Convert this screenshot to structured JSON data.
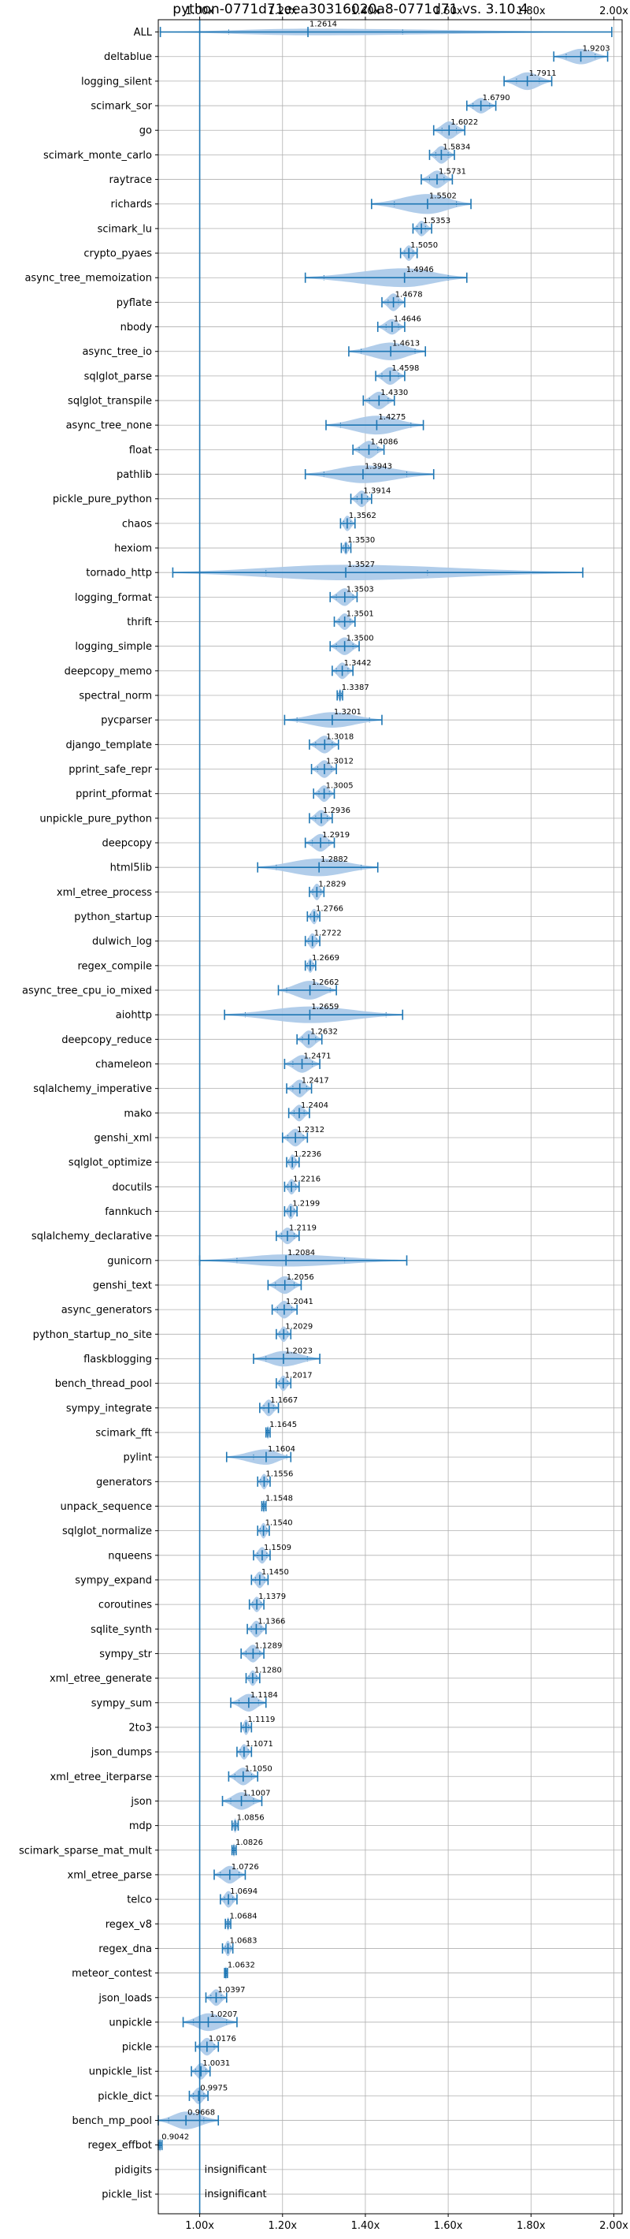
{
  "chart_data": {
    "type": "violin",
    "title": "python-0771d71eea30316020a8-0771d71 vs. 3.10.4",
    "x_ticks": [
      "1.00x",
      "1.20x",
      "1.40x",
      "1.60x",
      "1.80x",
      "2.00x"
    ],
    "x_tick_values": [
      1.0,
      1.2,
      1.4,
      1.6,
      1.8,
      2.0
    ],
    "xlim": [
      0.9,
      2.02
    ],
    "reference_line": 1.0,
    "grid": true,
    "colors": {
      "violin": "#a9c8e8",
      "line": "#1f77b4",
      "grid": "#b0b0b0",
      "axis": "#000000"
    },
    "rows": [
      {
        "name": "ALL",
        "label": "1.2614",
        "center": 1.2614,
        "min": 0.905,
        "max": 1.995,
        "qlo": 1.07,
        "qhi": 1.49,
        "width": 0.3
      },
      {
        "name": "deltablue",
        "label": "1.9203",
        "center": 1.9203,
        "min": 1.855,
        "max": 1.985,
        "qlo": 1.885,
        "qhi": 1.955,
        "width": 0.7
      },
      {
        "name": "logging_silent",
        "label": "1.7911",
        "center": 1.7911,
        "min": 1.735,
        "max": 1.85,
        "qlo": 1.765,
        "qhi": 1.82,
        "width": 0.8
      },
      {
        "name": "scimark_sor",
        "label": "1.6790",
        "center": 1.679,
        "min": 1.645,
        "max": 1.715,
        "qlo": 1.66,
        "qhi": 1.7,
        "width": 0.7
      },
      {
        "name": "go",
        "label": "1.6022",
        "center": 1.6022,
        "min": 1.565,
        "max": 1.64,
        "qlo": 1.585,
        "qhi": 1.62,
        "width": 0.8
      },
      {
        "name": "scimark_monte_carlo",
        "label": "1.5834",
        "center": 1.5834,
        "min": 1.555,
        "max": 1.615,
        "qlo": 1.57,
        "qhi": 1.6,
        "width": 0.8
      },
      {
        "name": "raytrace",
        "label": "1.5731",
        "center": 1.5731,
        "min": 1.535,
        "max": 1.61,
        "qlo": 1.555,
        "qhi": 1.59,
        "width": 0.8
      },
      {
        "name": "richards",
        "label": "1.5502",
        "center": 1.5502,
        "min": 1.415,
        "max": 1.655,
        "qlo": 1.47,
        "qhi": 1.62,
        "width": 0.9
      },
      {
        "name": "scimark_lu",
        "label": "1.5353",
        "center": 1.5353,
        "min": 1.515,
        "max": 1.56,
        "qlo": 1.525,
        "qhi": 1.545,
        "width": 0.7
      },
      {
        "name": "crypto_pyaes",
        "label": "1.5050",
        "center": 1.505,
        "min": 1.485,
        "max": 1.525,
        "qlo": 1.495,
        "qhi": 1.515,
        "width": 0.7
      },
      {
        "name": "async_tree_memoization",
        "label": "1.4946",
        "center": 1.4946,
        "min": 1.255,
        "max": 1.645,
        "qlo": 1.3,
        "qhi": 1.6,
        "width": 0.85
      },
      {
        "name": "pyflate",
        "label": "1.4678",
        "center": 1.4678,
        "min": 1.44,
        "max": 1.495,
        "qlo": 1.455,
        "qhi": 1.48,
        "width": 0.8
      },
      {
        "name": "nbody",
        "label": "1.4646",
        "center": 1.4646,
        "min": 1.43,
        "max": 1.495,
        "qlo": 1.45,
        "qhi": 1.48,
        "width": 0.7
      },
      {
        "name": "async_tree_io",
        "label": "1.4613",
        "center": 1.4613,
        "min": 1.36,
        "max": 1.545,
        "qlo": 1.39,
        "qhi": 1.52,
        "width": 0.8
      },
      {
        "name": "sqlglot_parse",
        "label": "1.4598",
        "center": 1.4598,
        "min": 1.425,
        "max": 1.495,
        "qlo": 1.44,
        "qhi": 1.48,
        "width": 0.8
      },
      {
        "name": "sqlglot_transpile",
        "label": "1.4330",
        "center": 1.433,
        "min": 1.395,
        "max": 1.47,
        "qlo": 1.41,
        "qhi": 1.455,
        "width": 0.8
      },
      {
        "name": "async_tree_none",
        "label": "1.4275",
        "center": 1.4275,
        "min": 1.305,
        "max": 1.54,
        "qlo": 1.34,
        "qhi": 1.51,
        "width": 0.85
      },
      {
        "name": "float",
        "label": "1.4086",
        "center": 1.4086,
        "min": 1.37,
        "max": 1.445,
        "qlo": 1.385,
        "qhi": 1.43,
        "width": 0.8
      },
      {
        "name": "pathlib",
        "label": "1.3943",
        "center": 1.3943,
        "min": 1.255,
        "max": 1.565,
        "qlo": 1.3,
        "qhi": 1.5,
        "width": 0.8
      },
      {
        "name": "pickle_pure_python",
        "label": "1.3914",
        "center": 1.3914,
        "min": 1.365,
        "max": 1.415,
        "qlo": 1.38,
        "qhi": 1.405,
        "width": 0.75
      },
      {
        "name": "chaos",
        "label": "1.3562",
        "center": 1.3562,
        "min": 1.34,
        "max": 1.375,
        "qlo": 1.348,
        "qhi": 1.365,
        "width": 0.7
      },
      {
        "name": "hexiom",
        "label": "1.3530",
        "center": 1.353,
        "min": 1.342,
        "max": 1.365,
        "qlo": 1.347,
        "qhi": 1.359,
        "width": 0.6
      },
      {
        "name": "tornado_http",
        "label": "1.3527",
        "center": 1.3527,
        "min": 0.935,
        "max": 1.925,
        "qlo": 1.16,
        "qhi": 1.55,
        "width": 0.7
      },
      {
        "name": "logging_format",
        "label": "1.3503",
        "center": 1.3503,
        "min": 1.315,
        "max": 1.38,
        "qlo": 1.33,
        "qhi": 1.37,
        "width": 0.8
      },
      {
        "name": "thrift",
        "label": "1.3501",
        "center": 1.3501,
        "min": 1.325,
        "max": 1.375,
        "qlo": 1.337,
        "qhi": 1.363,
        "width": 0.75
      },
      {
        "name": "logging_simple",
        "label": "1.3500",
        "center": 1.35,
        "min": 1.315,
        "max": 1.385,
        "qlo": 1.33,
        "qhi": 1.37,
        "width": 0.8
      },
      {
        "name": "deepcopy_memo",
        "label": "1.3442",
        "center": 1.3442,
        "min": 1.32,
        "max": 1.37,
        "qlo": 1.33,
        "qhi": 1.358,
        "width": 0.75
      },
      {
        "name": "spectral_norm",
        "label": "1.3387",
        "center": 1.3387,
        "min": 1.332,
        "max": 1.345,
        "qlo": 1.335,
        "qhi": 1.342,
        "width": 0.6
      },
      {
        "name": "pycparser",
        "label": "1.3201",
        "center": 1.3201,
        "min": 1.205,
        "max": 1.44,
        "qlo": 1.235,
        "qhi": 1.41,
        "width": 0.7
      },
      {
        "name": "django_template",
        "label": "1.3018",
        "center": 1.3018,
        "min": 1.265,
        "max": 1.335,
        "qlo": 1.28,
        "qhi": 1.32,
        "width": 0.8
      },
      {
        "name": "pprint_safe_repr",
        "label": "1.3012",
        "center": 1.3012,
        "min": 1.27,
        "max": 1.33,
        "qlo": 1.285,
        "qhi": 1.318,
        "width": 0.8
      },
      {
        "name": "pprint_pformat",
        "label": "1.3005",
        "center": 1.3005,
        "min": 1.275,
        "max": 1.325,
        "qlo": 1.288,
        "qhi": 1.313,
        "width": 0.75
      },
      {
        "name": "unpickle_pure_python",
        "label": "1.2936",
        "center": 1.2936,
        "min": 1.265,
        "max": 1.32,
        "qlo": 1.28,
        "qhi": 1.308,
        "width": 0.75
      },
      {
        "name": "deepcopy",
        "label": "1.2919",
        "center": 1.2919,
        "min": 1.255,
        "max": 1.325,
        "qlo": 1.272,
        "qhi": 1.312,
        "width": 0.8
      },
      {
        "name": "html5lib",
        "label": "1.2882",
        "center": 1.2882,
        "min": 1.14,
        "max": 1.43,
        "qlo": 1.185,
        "qhi": 1.39,
        "width": 0.8
      },
      {
        "name": "xml_etree_process",
        "label": "1.2829",
        "center": 1.2829,
        "min": 1.265,
        "max": 1.3,
        "qlo": 1.273,
        "qhi": 1.292,
        "width": 0.75
      },
      {
        "name": "python_startup",
        "label": "1.2766",
        "center": 1.2766,
        "min": 1.26,
        "max": 1.29,
        "qlo": 1.268,
        "qhi": 1.285,
        "width": 0.7
      },
      {
        "name": "dulwich_log",
        "label": "1.2722",
        "center": 1.2722,
        "min": 1.255,
        "max": 1.29,
        "qlo": 1.263,
        "qhi": 1.282,
        "width": 0.7
      },
      {
        "name": "regex_compile",
        "label": "1.2669",
        "center": 1.2669,
        "min": 1.255,
        "max": 1.28,
        "qlo": 1.26,
        "qhi": 1.274,
        "width": 0.65
      },
      {
        "name": "async_tree_cpu_io_mixed",
        "label": "1.2662",
        "center": 1.2662,
        "min": 1.19,
        "max": 1.33,
        "qlo": 1.21,
        "qhi": 1.315,
        "width": 0.85
      },
      {
        "name": "aiohttp",
        "label": "1.2659",
        "center": 1.2659,
        "min": 1.06,
        "max": 1.49,
        "qlo": 1.11,
        "qhi": 1.45,
        "width": 0.75
      },
      {
        "name": "deepcopy_reduce",
        "label": "1.2632",
        "center": 1.2632,
        "min": 1.235,
        "max": 1.295,
        "qlo": 1.248,
        "qhi": 1.28,
        "width": 0.8
      },
      {
        "name": "chameleon",
        "label": "1.2471",
        "center": 1.2471,
        "min": 1.205,
        "max": 1.29,
        "qlo": 1.225,
        "qhi": 1.272,
        "width": 0.8
      },
      {
        "name": "sqlalchemy_imperative",
        "label": "1.2417",
        "center": 1.2417,
        "min": 1.21,
        "max": 1.27,
        "qlo": 1.225,
        "qhi": 1.258,
        "width": 0.8
      },
      {
        "name": "mako",
        "label": "1.2404",
        "center": 1.2404,
        "min": 1.215,
        "max": 1.265,
        "qlo": 1.228,
        "qhi": 1.252,
        "width": 0.75
      },
      {
        "name": "genshi_xml",
        "label": "1.2312",
        "center": 1.2312,
        "min": 1.2,
        "max": 1.26,
        "qlo": 1.213,
        "qhi": 1.25,
        "width": 0.8
      },
      {
        "name": "sqlglot_optimize",
        "label": "1.2236",
        "center": 1.2236,
        "min": 1.21,
        "max": 1.24,
        "qlo": 1.215,
        "qhi": 1.232,
        "width": 0.7
      },
      {
        "name": "docutils",
        "label": "1.2216",
        "center": 1.2216,
        "min": 1.205,
        "max": 1.24,
        "qlo": 1.213,
        "qhi": 1.232,
        "width": 0.7
      },
      {
        "name": "fannkuch",
        "label": "1.2199",
        "center": 1.2199,
        "min": 1.205,
        "max": 1.235,
        "qlo": 1.212,
        "qhi": 1.228,
        "width": 0.7
      },
      {
        "name": "sqlalchemy_declarative",
        "label": "1.2119",
        "center": 1.2119,
        "min": 1.185,
        "max": 1.24,
        "qlo": 1.198,
        "qhi": 1.228,
        "width": 0.75
      },
      {
        "name": "gunicorn",
        "label": "1.2084",
        "center": 1.2084,
        "min": 1.0,
        "max": 1.5,
        "qlo": 1.09,
        "qhi": 1.35,
        "width": 0.55
      },
      {
        "name": "genshi_text",
        "label": "1.2056",
        "center": 1.2056,
        "min": 1.165,
        "max": 1.245,
        "qlo": 1.183,
        "qhi": 1.228,
        "width": 0.8
      },
      {
        "name": "async_generators",
        "label": "1.2041",
        "center": 1.2041,
        "min": 1.175,
        "max": 1.235,
        "qlo": 1.188,
        "qhi": 1.222,
        "width": 0.8
      },
      {
        "name": "python_startup_no_site",
        "label": "1.2029",
        "center": 1.2029,
        "min": 1.185,
        "max": 1.22,
        "qlo": 1.193,
        "qhi": 1.212,
        "width": 0.7
      },
      {
        "name": "flaskblogging",
        "label": "1.2023",
        "center": 1.2023,
        "min": 1.13,
        "max": 1.29,
        "qlo": 1.16,
        "qhi": 1.26,
        "width": 0.7
      },
      {
        "name": "bench_thread_pool",
        "label": "1.2017",
        "center": 1.2017,
        "min": 1.185,
        "max": 1.22,
        "qlo": 1.192,
        "qhi": 1.212,
        "width": 0.7
      },
      {
        "name": "sympy_integrate",
        "label": "1.1667",
        "center": 1.1667,
        "min": 1.145,
        "max": 1.19,
        "qlo": 1.155,
        "qhi": 1.178,
        "width": 0.75
      },
      {
        "name": "scimark_fft",
        "label": "1.1645",
        "center": 1.1645,
        "min": 1.16,
        "max": 1.17,
        "qlo": 1.162,
        "qhi": 1.167,
        "width": 0.6
      },
      {
        "name": "pylint",
        "label": "1.1604",
        "center": 1.1604,
        "min": 1.065,
        "max": 1.22,
        "qlo": 1.13,
        "qhi": 1.21,
        "width": 0.7
      },
      {
        "name": "generators",
        "label": "1.1556",
        "center": 1.1556,
        "min": 1.14,
        "max": 1.17,
        "qlo": 1.147,
        "qhi": 1.164,
        "width": 0.7
      },
      {
        "name": "unpack_sequence",
        "label": "1.1548",
        "center": 1.1548,
        "min": 1.15,
        "max": 1.16,
        "qlo": 1.152,
        "qhi": 1.158,
        "width": 0.6
      },
      {
        "name": "sqlglot_normalize",
        "label": "1.1540",
        "center": 1.154,
        "min": 1.14,
        "max": 1.168,
        "qlo": 1.146,
        "qhi": 1.162,
        "width": 0.7
      },
      {
        "name": "nqueens",
        "label": "1.1509",
        "center": 1.1509,
        "min": 1.13,
        "max": 1.17,
        "qlo": 1.14,
        "qhi": 1.162,
        "width": 0.75
      },
      {
        "name": "sympy_expand",
        "label": "1.1450",
        "center": 1.145,
        "min": 1.125,
        "max": 1.165,
        "qlo": 1.135,
        "qhi": 1.156,
        "width": 0.75
      },
      {
        "name": "coroutines",
        "label": "1.1379",
        "center": 1.1379,
        "min": 1.12,
        "max": 1.155,
        "qlo": 1.128,
        "qhi": 1.148,
        "width": 0.7
      },
      {
        "name": "sqlite_synth",
        "label": "1.1366",
        "center": 1.1366,
        "min": 1.115,
        "max": 1.16,
        "qlo": 1.125,
        "qhi": 1.148,
        "width": 0.75
      },
      {
        "name": "sympy_str",
        "label": "1.1289",
        "center": 1.1289,
        "min": 1.1,
        "max": 1.155,
        "qlo": 1.112,
        "qhi": 1.145,
        "width": 0.8
      },
      {
        "name": "xml_etree_generate",
        "label": "1.1280",
        "center": 1.128,
        "min": 1.112,
        "max": 1.145,
        "qlo": 1.119,
        "qhi": 1.137,
        "width": 0.7
      },
      {
        "name": "sympy_sum",
        "label": "1.1184",
        "center": 1.1184,
        "min": 1.075,
        "max": 1.16,
        "qlo": 1.095,
        "qhi": 1.142,
        "width": 0.8
      },
      {
        "name": "2to3",
        "label": "1.1119",
        "center": 1.1119,
        "min": 1.1,
        "max": 1.125,
        "qlo": 1.105,
        "qhi": 1.118,
        "width": 0.7
      },
      {
        "name": "json_dumps",
        "label": "1.1071",
        "center": 1.1071,
        "min": 1.09,
        "max": 1.125,
        "qlo": 1.098,
        "qhi": 1.117,
        "width": 0.7
      },
      {
        "name": "xml_etree_iterparse",
        "label": "1.1050",
        "center": 1.105,
        "min": 1.07,
        "max": 1.14,
        "qlo": 1.085,
        "qhi": 1.125,
        "width": 0.8
      },
      {
        "name": "json",
        "label": "1.1007",
        "center": 1.1007,
        "min": 1.055,
        "max": 1.15,
        "qlo": 1.075,
        "qhi": 1.13,
        "width": 0.8
      },
      {
        "name": "mdp",
        "label": "1.0856",
        "center": 1.0856,
        "min": 1.078,
        "max": 1.093,
        "qlo": 1.081,
        "qhi": 1.09,
        "width": 0.65
      },
      {
        "name": "scimark_sparse_mat_mult",
        "label": "1.0826",
        "center": 1.0826,
        "min": 1.078,
        "max": 1.088,
        "qlo": 1.08,
        "qhi": 1.085,
        "width": 0.6
      },
      {
        "name": "xml_etree_parse",
        "label": "1.0726",
        "center": 1.0726,
        "min": 1.035,
        "max": 1.11,
        "qlo": 1.05,
        "qhi": 1.095,
        "width": 0.8
      },
      {
        "name": "telco",
        "label": "1.0694",
        "center": 1.0694,
        "min": 1.05,
        "max": 1.09,
        "qlo": 1.06,
        "qhi": 1.08,
        "width": 0.75
      },
      {
        "name": "regex_v8",
        "label": "1.0684",
        "center": 1.0684,
        "min": 1.062,
        "max": 1.075,
        "qlo": 1.065,
        "qhi": 1.072,
        "width": 0.6
      },
      {
        "name": "regex_dna",
        "label": "1.0683",
        "center": 1.0683,
        "min": 1.055,
        "max": 1.08,
        "qlo": 1.062,
        "qhi": 1.075,
        "width": 0.7
      },
      {
        "name": "meteor_contest",
        "label": "1.0632",
        "center": 1.0632,
        "min": 1.06,
        "max": 1.067,
        "qlo": 1.061,
        "qhi": 1.065,
        "width": 0.6
      },
      {
        "name": "json_loads",
        "label": "1.0397",
        "center": 1.0397,
        "min": 1.015,
        "max": 1.065,
        "qlo": 1.027,
        "qhi": 1.052,
        "width": 0.75
      },
      {
        "name": "unpickle",
        "label": "1.0207",
        "center": 1.0207,
        "min": 0.96,
        "max": 1.09,
        "qlo": 0.985,
        "qhi": 1.065,
        "width": 0.8
      },
      {
        "name": "pickle",
        "label": "1.0176",
        "center": 1.0176,
        "min": 0.99,
        "max": 1.045,
        "qlo": 1.0,
        "qhi": 1.035,
        "width": 0.8
      },
      {
        "name": "unpickle_list",
        "label": "1.0031",
        "center": 1.0031,
        "min": 0.98,
        "max": 1.025,
        "qlo": 0.99,
        "qhi": 1.015,
        "width": 0.75
      },
      {
        "name": "pickle_dict",
        "label": "0.9975",
        "center": 0.9975,
        "min": 0.975,
        "max": 1.02,
        "qlo": 0.985,
        "qhi": 1.01,
        "width": 0.75
      },
      {
        "name": "bench_mp_pool",
        "label": "0.9668",
        "center": 0.9668,
        "min": 0.9,
        "max": 1.045,
        "qlo": 0.925,
        "qhi": 1.01,
        "width": 0.8
      },
      {
        "name": "regex_effbot",
        "label": "0.9042",
        "center": 0.9042,
        "min": 0.9,
        "max": 0.909,
        "qlo": 0.902,
        "qhi": 0.907,
        "width": 0.6
      },
      {
        "name": "pidigits",
        "label": "insignificant",
        "center": null
      },
      {
        "name": "pickle_list",
        "label": "insignificant",
        "center": null
      }
    ]
  }
}
